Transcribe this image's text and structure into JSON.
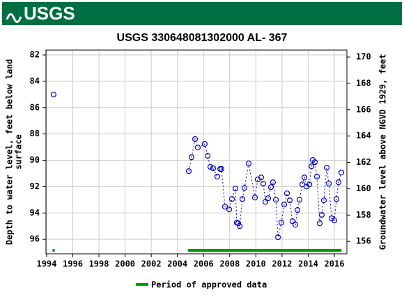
{
  "header": {
    "logo": "USGS"
  },
  "chart_data": {
    "type": "line",
    "title": "USGS 330648081302000 AL- 367",
    "y_label": [
      "Depth to water level, feet below land",
      "surface"
    ],
    "y2_label": "Groundwater level above NGVD 1929, feet",
    "xlim": [
      1993.95,
      2016.96
    ],
    "xticks": [
      1994,
      1996,
      1998,
      2000,
      2002,
      2004,
      2006,
      2008,
      2010,
      2012,
      2014,
      2016
    ],
    "ylim": [
      97.1,
      81.63
    ],
    "yticks": [
      82,
      84,
      86,
      88,
      90,
      92,
      94,
      96
    ],
    "y2lim": [
      155.06,
      170.53
    ],
    "y2ticks": [
      156,
      158,
      160,
      162,
      164,
      166,
      168,
      170
    ],
    "grid": true,
    "x": [
      1994.53,
      null,
      2004.87,
      2005.08,
      2005.35,
      2005.56,
      2006.09,
      2006.31,
      2006.52,
      2006.73,
      2007.05,
      2007.27,
      2007.37,
      2007.64,
      2007.96,
      2008.17,
      2008.44,
      2008.54,
      2008.65,
      2008.76,
      2008.97,
      2009.13,
      2009.45,
      2009.93,
      2010.14,
      2010.41,
      2010.57,
      2010.73,
      2010.94,
      2011.15,
      2011.31,
      2011.53,
      2011.69,
      2011.95,
      2012.17,
      2012.38,
      2012.59,
      2012.8,
      2013.02,
      2013.18,
      2013.34,
      2013.55,
      2013.71,
      2013.87,
      2014.09,
      2014.25,
      2014.35,
      2014.51,
      2014.67,
      2014.88,
      2015.04,
      2015.2,
      2015.42,
      2015.58,
      2015.79,
      2016.0,
      2016.16,
      2016.32,
      2016.54
    ],
    "series": [
      {
        "color": "#0000cc",
        "values": [
          85.0,
          null,
          90.82,
          89.77,
          88.39,
          89.03,
          88.76,
          89.66,
          90.5,
          90.61,
          91.24,
          90.66,
          90.66,
          93.52,
          93.73,
          92.94,
          92.14,
          94.73,
          94.78,
          95.0,
          92.94,
          92.09,
          90.24,
          92.83,
          91.46,
          91.3,
          91.77,
          93.15,
          92.88,
          92.04,
          91.67,
          93.0,
          95.84,
          94.73,
          93.36,
          92.51,
          93.04,
          94.63,
          94.89,
          93.78,
          93.0,
          91.83,
          91.3,
          91.99,
          91.83,
          90.45,
          89.98,
          90.14,
          91.24,
          94.78,
          94.15,
          93.04,
          90.56,
          91.77,
          94.41,
          94.57,
          92.94,
          91.67,
          90.93
        ]
      }
    ],
    "approved_periods": [
      [
        1994.45,
        1994.62
      ],
      [
        2004.8,
        2016.55
      ]
    ],
    "approved_color": "#009900",
    "legend": "Period of approved data"
  }
}
